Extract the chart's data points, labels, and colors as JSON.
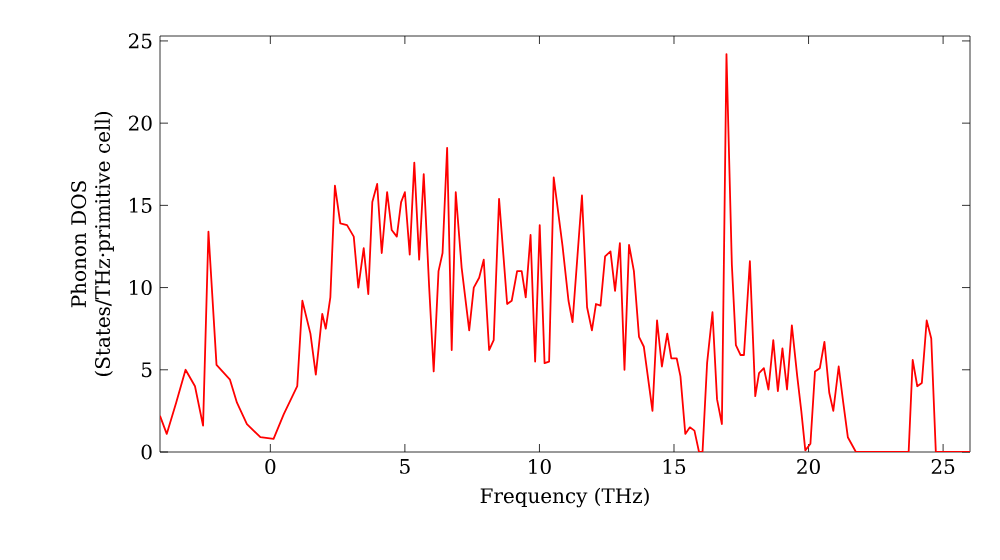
{
  "chart_data": {
    "type": "line",
    "xlabel": "Frequency (THz)",
    "ylabel": "Phonon DOS (States/THz·primitive cell)",
    "xlim": [
      -4.1,
      26
    ],
    "ylim": [
      0,
      25.3
    ],
    "xticks": [
      0,
      5,
      10,
      15,
      20,
      25
    ],
    "yticks": [
      0,
      5,
      10,
      15,
      20,
      25
    ],
    "grid": false,
    "series": [
      {
        "color": "#ff0000",
        "x": [
          -4.1,
          -3.85,
          -3.5,
          -3.15,
          -2.8,
          -2.5,
          -2.3,
          -2.0,
          -1.5,
          -1.24,
          -0.87,
          -0.37,
          0.12,
          0.5,
          1.0,
          1.19,
          1.49,
          1.69,
          1.93,
          2.06,
          2.23,
          2.4,
          2.6,
          2.85,
          3.1,
          3.27,
          3.47,
          3.64,
          3.79,
          3.97,
          4.14,
          4.34,
          4.51,
          4.7,
          4.86,
          5.0,
          5.18,
          5.35,
          5.53,
          5.7,
          5.9,
          6.07,
          6.25,
          6.4,
          6.57,
          6.74,
          6.89,
          7.11,
          7.39,
          7.56,
          7.76,
          7.93,
          8.13,
          8.3,
          8.5,
          8.8,
          8.97,
          9.17,
          9.34,
          9.49,
          9.67,
          9.84,
          10.01,
          10.19,
          10.36,
          10.53,
          10.86,
          11.08,
          11.23,
          11.58,
          11.77,
          11.95,
          12.1,
          12.27,
          12.44,
          12.64,
          12.81,
          12.99,
          13.16,
          13.33,
          13.51,
          13.7,
          13.88,
          14.2,
          14.37,
          14.55,
          14.75,
          14.9,
          15.1,
          15.24,
          15.42,
          15.59,
          15.76,
          15.93,
          16.06,
          16.23,
          16.43,
          16.6,
          16.78,
          16.95,
          17.15,
          17.3,
          17.47,
          17.6,
          17.82,
          18.02,
          18.16,
          18.34,
          18.51,
          18.69,
          18.86,
          19.03,
          19.2,
          19.38,
          19.58,
          19.73,
          19.88,
          20.07,
          20.24,
          20.42,
          20.59,
          20.77,
          20.92,
          21.12,
          21.29,
          21.46,
          21.76,
          23.72,
          23.87,
          24.04,
          24.21,
          24.39,
          24.56,
          24.73,
          26.0
        ],
        "values": [
          2.2,
          1.1,
          3.0,
          5.0,
          4.0,
          1.6,
          13.4,
          5.3,
          4.4,
          3.0,
          1.7,
          0.9,
          0.8,
          2.3,
          4.0,
          9.2,
          7.2,
          4.7,
          8.4,
          7.5,
          9.4,
          16.2,
          13.9,
          13.8,
          13.1,
          10.0,
          12.4,
          9.6,
          15.2,
          16.3,
          12.1,
          15.8,
          13.5,
          13.1,
          15.2,
          15.8,
          12.0,
          17.6,
          11.7,
          16.9,
          10.1,
          4.9,
          11.0,
          12.1,
          18.5,
          6.2,
          15.8,
          11.2,
          7.4,
          10.0,
          10.6,
          11.7,
          6.2,
          6.8,
          15.4,
          9.0,
          9.2,
          11.0,
          11.0,
          9.4,
          13.2,
          5.5,
          13.8,
          5.4,
          5.5,
          16.7,
          12.5,
          9.2,
          7.9,
          15.6,
          8.8,
          7.4,
          9.0,
          8.9,
          11.9,
          12.2,
          9.8,
          12.7,
          5.0,
          12.6,
          11.0,
          7.0,
          6.4,
          2.5,
          8.0,
          5.2,
          7.2,
          5.7,
          5.7,
          4.6,
          1.1,
          1.5,
          1.3,
          0,
          0,
          5.4,
          8.5,
          3.2,
          1.7,
          24.2,
          11.4,
          6.5,
          5.9,
          5.9,
          11.6,
          3.4,
          4.8,
          5.1,
          3.8,
          6.8,
          3.7,
          6.3,
          3.8,
          7.7,
          4.6,
          2.5,
          0.1,
          0.5,
          4.9,
          5.1,
          6.7,
          3.6,
          2.5,
          5.2,
          3.0,
          0.9,
          0,
          0,
          5.6,
          4.0,
          4.2,
          8.0,
          6.9,
          0,
          0
        ]
      }
    ]
  }
}
